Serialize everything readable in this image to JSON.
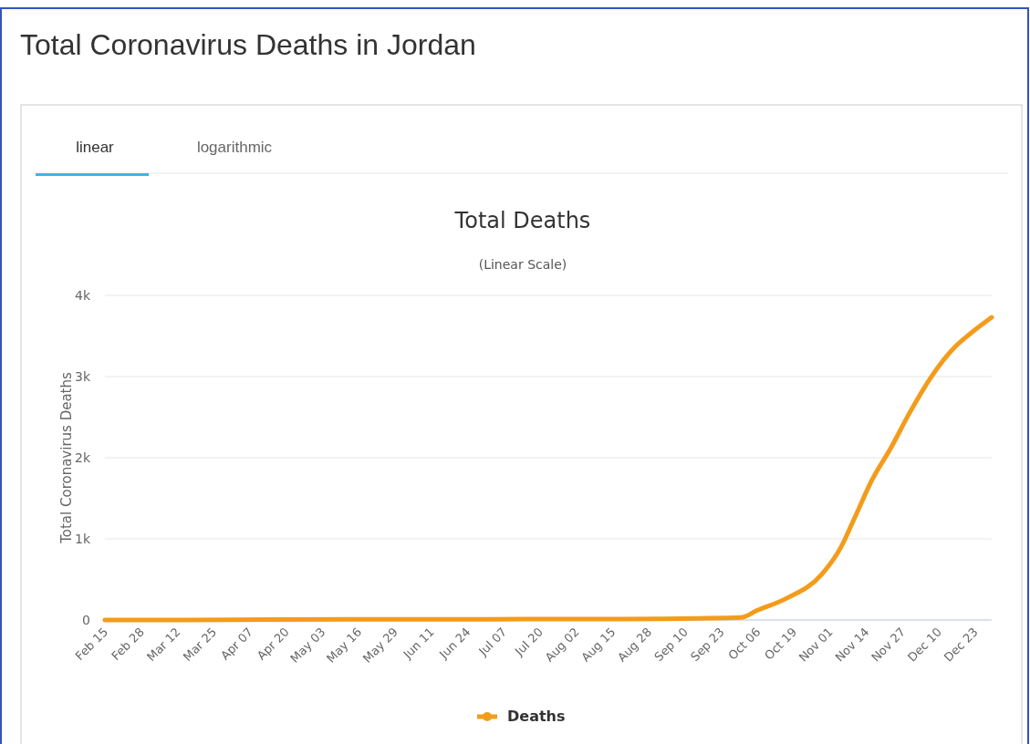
{
  "chart_data": {
    "type": "line",
    "title": "Total Deaths",
    "subtitle": "(Linear Scale)",
    "ylabel": "Total Coronavirus Deaths",
    "annotations": [
      "Total Coronavirus Deaths in Jordan",
      "linear",
      "logarithmic"
    ],
    "x": [
      "--02-15",
      "--03-15",
      "--04-15",
      "--05-15",
      "--06-15",
      "--07-15",
      "--08-15",
      "--09-01",
      "--09-15",
      "--09-30",
      "--10-06",
      "--10-16",
      "--10-29",
      "--11-05",
      "--11-10",
      "--11-16",
      "--11-23",
      "--11-30",
      "--12-08",
      "--12-16",
      "--12-21",
      "--12-29"
    ],
    "series": [
      {
        "name": "Deaths",
        "color": "#f39c1b",
        "values": [
          0,
          0,
          7,
          9,
          9,
          10,
          11,
          15,
          20,
          30,
          120,
          260,
          560,
          900,
          1270,
          1720,
          2130,
          2580,
          3030,
          3370,
          3520,
          3730
        ]
      }
    ],
    "xlim": [
      "--02-15",
      "--12-29"
    ],
    "xticks": [
      {
        "value": "--02-15",
        "label": "Feb 15"
      },
      {
        "value": "--02-28",
        "label": "Feb 28"
      },
      {
        "value": "--03-12",
        "label": "Mar 12"
      },
      {
        "value": "--03-25",
        "label": "Mar 25"
      },
      {
        "value": "--04-07",
        "label": "Apr 07"
      },
      {
        "value": "--04-20",
        "label": "Apr 20"
      },
      {
        "value": "--05-03",
        "label": "May 03"
      },
      {
        "value": "--05-16",
        "label": "May 16"
      },
      {
        "value": "--05-29",
        "label": "May 29"
      },
      {
        "value": "--06-11",
        "label": "Jun 11"
      },
      {
        "value": "--06-24",
        "label": "Jun 24"
      },
      {
        "value": "--07-07",
        "label": "Jul 07"
      },
      {
        "value": "--07-20",
        "label": "Jul 20"
      },
      {
        "value": "--08-02",
        "label": "Aug 02"
      },
      {
        "value": "--08-15",
        "label": "Aug 15"
      },
      {
        "value": "--08-28",
        "label": "Aug 28"
      },
      {
        "value": "--09-10",
        "label": "Sep 10"
      },
      {
        "value": "--09-23",
        "label": "Sep 23"
      },
      {
        "value": "--10-06",
        "label": "Oct 06"
      },
      {
        "value": "--10-19",
        "label": "Oct 19"
      },
      {
        "value": "--11-01",
        "label": "Nov 01"
      },
      {
        "value": "--11-14",
        "label": "Nov 14"
      },
      {
        "value": "--11-27",
        "label": "Nov 27"
      },
      {
        "value": "--12-10",
        "label": "Dec 10"
      },
      {
        "value": "--12-23",
        "label": "Dec 23"
      }
    ],
    "ylim": [
      0,
      4000
    ],
    "yticks": [
      {
        "value": 0,
        "label": "0"
      },
      {
        "value": 1000,
        "label": "1k"
      },
      {
        "value": 2000,
        "label": "2k"
      },
      {
        "value": 3000,
        "label": "3k"
      },
      {
        "value": 4000,
        "label": "4k"
      }
    ],
    "grid": "y",
    "legend": "bottom",
    "marker": "none",
    "line_style": "solid"
  }
}
